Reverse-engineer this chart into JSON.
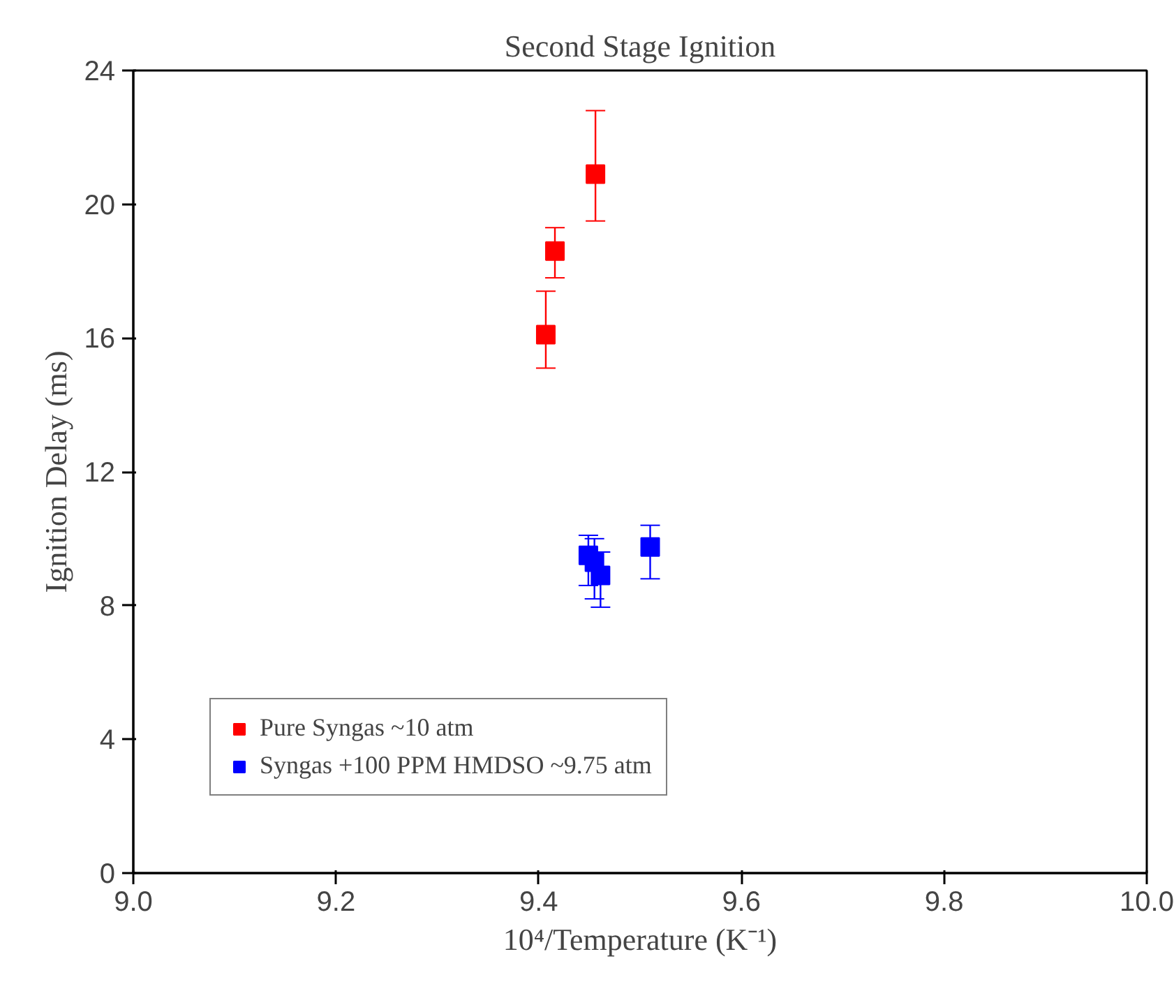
{
  "chart_data": {
    "type": "scatter",
    "title": "Second Stage Ignition",
    "xlabel": "10⁴/Temperature (K⁻¹)",
    "ylabel": "Ignition Delay (ms)",
    "xlim": [
      9.0,
      10.0
    ],
    "xticks": [
      {
        "value": 9.0,
        "label": "9.0"
      },
      9.2,
      9.4,
      9.6,
      9.8,
      {
        "value": 10.0,
        "label": "10.0"
      }
    ],
    "ylim": [
      0,
      24
    ],
    "yticks": [
      0,
      4,
      8,
      12,
      16,
      20,
      24
    ],
    "grid": false,
    "legend": "bottom left",
    "marker": "square",
    "series": [
      {
        "name": "Pure Syngas ~10 atm",
        "color": "#ff0000",
        "x": [
          9.407,
          9.416,
          9.456
        ],
        "values": [
          16.1,
          18.6,
          20.9
        ],
        "errors": [
          [
            15.1,
            17.4
          ],
          [
            17.8,
            19.3
          ],
          [
            19.5,
            22.8
          ]
        ]
      },
      {
        "name": "Syngas +100 PPM HMDSO ~9.75 atm",
        "color": "#0000ff",
        "x": [
          9.449,
          9.455,
          9.461,
          9.51
        ],
        "values": [
          9.5,
          9.3,
          8.9,
          9.75
        ],
        "errors": [
          [
            8.6,
            10.1
          ],
          [
            8.2,
            10.0
          ],
          [
            7.95,
            9.6
          ],
          [
            8.8,
            10.4
          ]
        ]
      }
    ]
  }
}
